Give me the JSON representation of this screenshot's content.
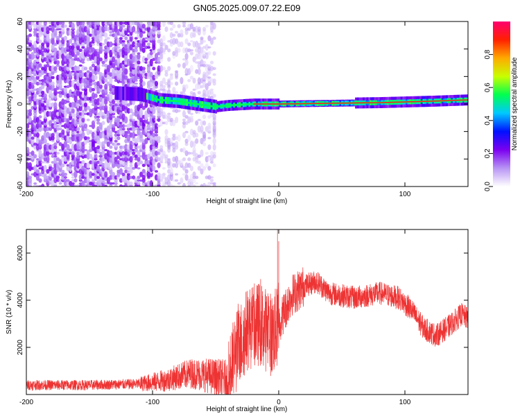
{
  "figure_title": "GN05.2025.009.07.22.E09",
  "chart_data": [
    {
      "type": "heatmap",
      "title": "GN05.2025.009.07.22.E09",
      "xlabel": "Height of straight line (km)",
      "ylabel": "Frequency (Hz)",
      "xlim": [
        -200,
        150
      ],
      "ylim": [
        -60,
        60
      ],
      "x_ticks": [
        -200,
        -100,
        0,
        100
      ],
      "y_ticks": [
        -60,
        -40,
        -20,
        0,
        20,
        40,
        60
      ],
      "grid": false,
      "colorbar": {
        "label": "Normalized spectral amplitude",
        "range": [
          0,
          1
        ],
        "ticks": [
          0.0,
          0.2,
          0.4,
          0.6,
          0.8
        ],
        "colormap": [
          "#ffffff",
          "#b894f4",
          "#7b00f0",
          "#0010ff",
          "#00c8ff",
          "#00ff50",
          "#c8ff00",
          "#ffaa00",
          "#ff2000",
          "#ff0070"
        ]
      },
      "features": {
        "noise_region_x": [
          -200,
          -95
        ],
        "sparse_noise_x": [
          -95,
          -50
        ],
        "signal_start_x": -130,
        "signal_track": [
          {
            "x": -130,
            "y": 8
          },
          {
            "x": -110,
            "y": 7
          },
          {
            "x": -95,
            "y": 3
          },
          {
            "x": -80,
            "y": 2
          },
          {
            "x": -65,
            "y": 0
          },
          {
            "x": -50,
            "y": -2
          },
          {
            "x": -40,
            "y": -1
          },
          {
            "x": -20,
            "y": 0
          },
          {
            "x": 0,
            "y": 0
          },
          {
            "x": 40,
            "y": 0.5
          },
          {
            "x": 80,
            "y": 1
          },
          {
            "x": 120,
            "y": 2
          },
          {
            "x": 150,
            "y": 3
          }
        ]
      }
    },
    {
      "type": "line",
      "xlabel": "Height of straight line (km)",
      "ylabel": "SNR (10 * v/v)",
      "xlim": [
        -200,
        150
      ],
      "ylim": [
        0,
        7000
      ],
      "x_ticks": [
        -200,
        -100,
        0,
        100
      ],
      "y_ticks": [
        2000,
        4000,
        6000
      ],
      "grid": false,
      "color": "#ee3333",
      "series_envelope": [
        {
          "x": -200,
          "y": 400
        },
        {
          "x": -150,
          "y": 400
        },
        {
          "x": -110,
          "y": 450
        },
        {
          "x": -90,
          "y": 600
        },
        {
          "x": -70,
          "y": 900
        },
        {
          "x": -55,
          "y": 800
        },
        {
          "x": -40,
          "y": 600
        },
        {
          "x": -35,
          "y": 1600
        },
        {
          "x": -25,
          "y": 2800
        },
        {
          "x": -15,
          "y": 3000
        },
        {
          "x": -5,
          "y": 2500
        },
        {
          "x": 0,
          "y": 3000
        },
        {
          "x": 10,
          "y": 4200
        },
        {
          "x": 20,
          "y": 4600
        },
        {
          "x": 30,
          "y": 4800
        },
        {
          "x": 40,
          "y": 4300
        },
        {
          "x": 60,
          "y": 4100
        },
        {
          "x": 80,
          "y": 4300
        },
        {
          "x": 95,
          "y": 4100
        },
        {
          "x": 105,
          "y": 3600
        },
        {
          "x": 115,
          "y": 2800
        },
        {
          "x": 125,
          "y": 2500
        },
        {
          "x": 135,
          "y": 2900
        },
        {
          "x": 145,
          "y": 3400
        },
        {
          "x": 150,
          "y": 3200
        }
      ],
      "spikes": [
        {
          "x": -1,
          "y": 7000
        },
        {
          "x": 0,
          "y": 6500
        }
      ]
    }
  ]
}
